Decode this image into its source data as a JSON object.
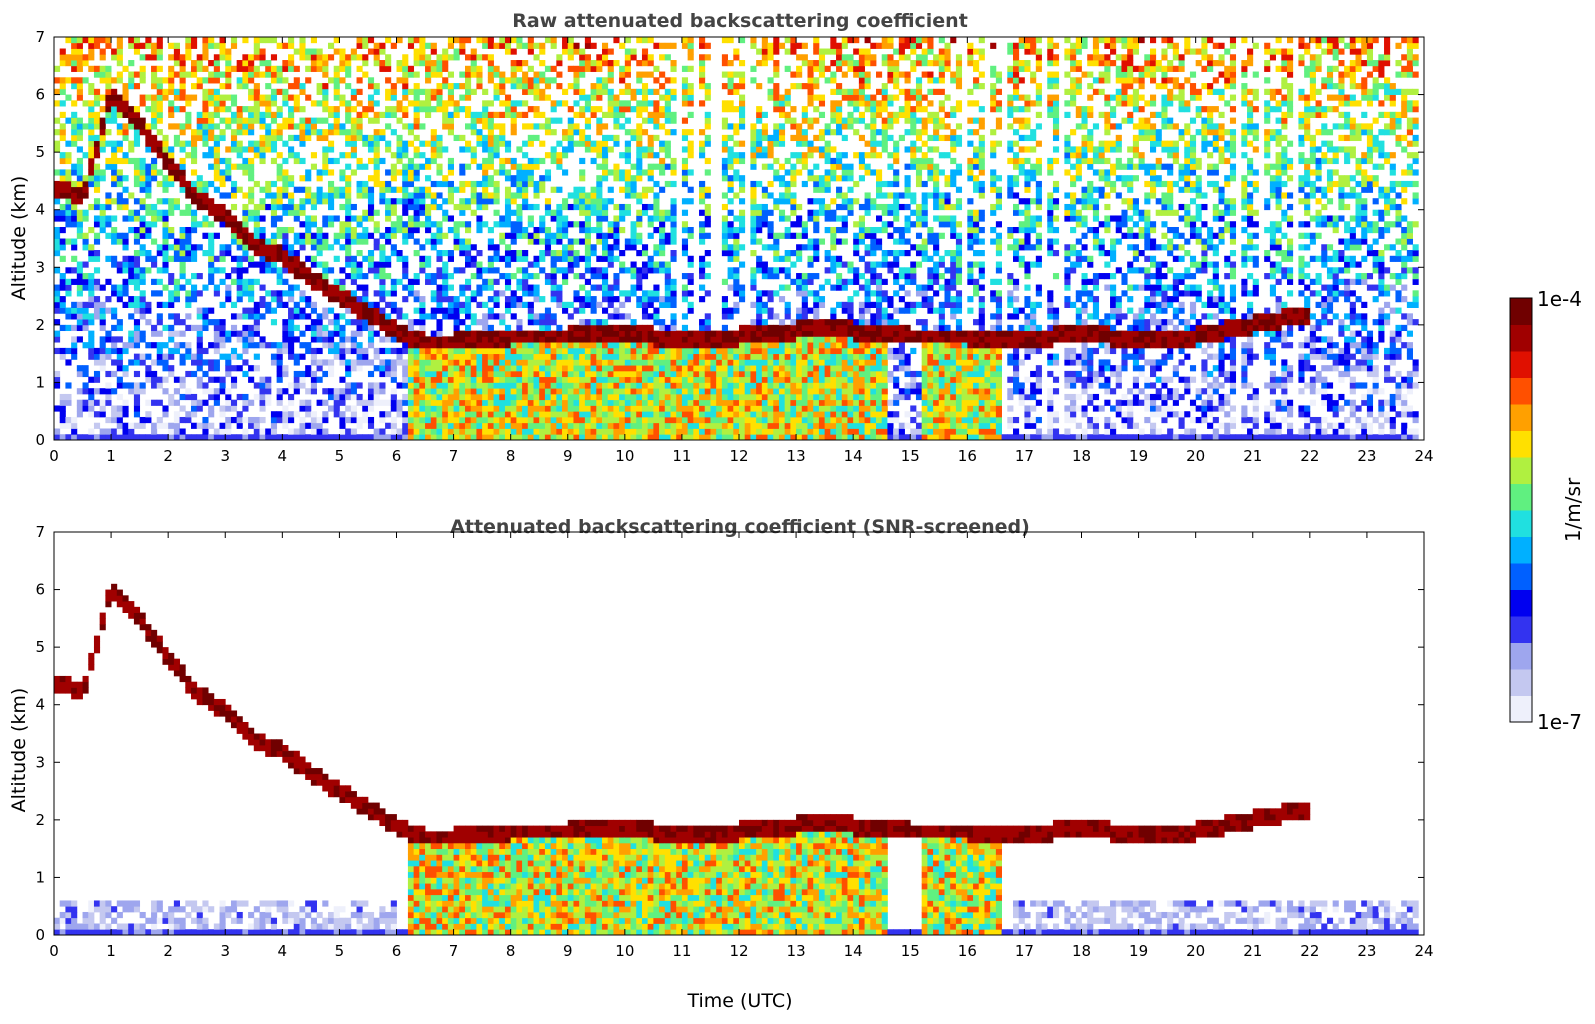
{
  "chart_data": [
    {
      "type": "heatmap",
      "title": "Raw attenuated backscattering coefficient",
      "xlabel": "",
      "ylabel": "Altitude (km)",
      "xlim": [
        0,
        24
      ],
      "ylim": [
        0,
        7
      ],
      "x_ticks": [
        "0",
        "1",
        "2",
        "3",
        "4",
        "5",
        "6",
        "7",
        "8",
        "9",
        "10",
        "11",
        "12",
        "13",
        "14",
        "15",
        "16",
        "17",
        "18",
        "19",
        "20",
        "21",
        "22",
        "23",
        "24"
      ],
      "y_ticks": [
        "0",
        "1",
        "2",
        "3",
        "4",
        "5",
        "6",
        "7"
      ],
      "cloud_layer": {
        "x": [
          0.0,
          0.5,
          1.0,
          1.5,
          2.0,
          2.5,
          3.0,
          3.5,
          4.0,
          4.5,
          5.0,
          5.5,
          6.0,
          6.5,
          7.0,
          8.0,
          9.0,
          10.0,
          11.0,
          12.0,
          13.0,
          13.5,
          14.0,
          15.0,
          16.0,
          17.0,
          18.0,
          19.0,
          20.0,
          21.0,
          22.0
        ],
        "y": [
          4.4,
          4.2,
          6.0,
          5.5,
          4.8,
          4.2,
          3.9,
          3.4,
          3.2,
          2.8,
          2.5,
          2.2,
          1.9,
          1.7,
          1.7,
          1.8,
          1.8,
          1.9,
          1.7,
          1.8,
          1.9,
          2.0,
          1.9,
          1.8,
          1.8,
          1.7,
          1.9,
          1.7,
          1.8,
          2.0,
          2.2
        ]
      }
    },
    {
      "type": "heatmap",
      "title": "Attenuated backscattering coefficient (SNR-screened)",
      "xlabel": "Time (UTC)",
      "ylabel": "Altitude (km)",
      "xlim": [
        0,
        24
      ],
      "ylim": [
        0,
        7
      ],
      "x_ticks": [
        "0",
        "1",
        "2",
        "3",
        "4",
        "5",
        "6",
        "7",
        "8",
        "9",
        "10",
        "11",
        "12",
        "13",
        "14",
        "15",
        "16",
        "17",
        "18",
        "19",
        "20",
        "21",
        "22",
        "23",
        "24"
      ],
      "y_ticks": [
        "0",
        "1",
        "2",
        "3",
        "4",
        "5",
        "6",
        "7"
      ],
      "cloud_layer": {
        "x": [
          0.0,
          0.5,
          1.0,
          1.5,
          2.0,
          2.5,
          3.0,
          3.5,
          4.0,
          4.5,
          5.0,
          5.5,
          6.0,
          6.5,
          7.0,
          8.0,
          9.0,
          10.0,
          11.0,
          12.0,
          13.0,
          13.5,
          14.0,
          15.0,
          16.0,
          17.0,
          18.0,
          19.0,
          20.0,
          21.0,
          22.0
        ],
        "y": [
          4.4,
          4.2,
          6.0,
          5.5,
          4.8,
          4.2,
          3.9,
          3.4,
          3.2,
          2.8,
          2.5,
          2.2,
          1.9,
          1.7,
          1.7,
          1.8,
          1.8,
          1.9,
          1.7,
          1.8,
          1.9,
          2.0,
          1.9,
          1.8,
          1.8,
          1.7,
          1.9,
          1.7,
          1.8,
          2.0,
          2.2
        ]
      }
    }
  ],
  "colorbar": {
    "max_label": "1e-4",
    "min_label": "1e-7",
    "unit_label": "1/m/sr",
    "colors": [
      "#eef0fb",
      "#c4c8f0",
      "#9ea6ee",
      "#3333f0",
      "#0000f0",
      "#0060ff",
      "#00b0ff",
      "#20e0e0",
      "#60f080",
      "#b0f040",
      "#ffe000",
      "#ffa000",
      "#ff5000",
      "#e01000",
      "#a00000",
      "#700000"
    ]
  }
}
